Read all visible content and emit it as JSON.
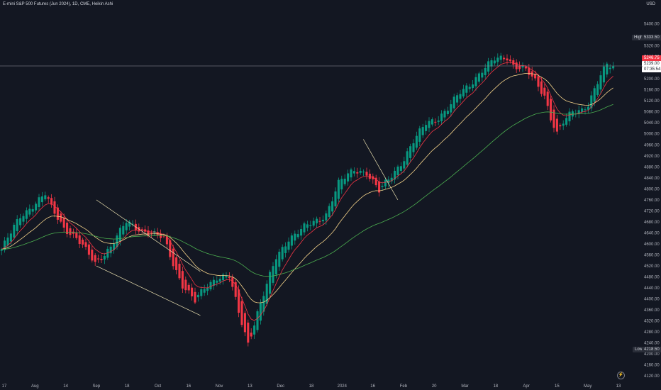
{
  "header": {
    "title": "E-mini S&P 500 Futures (Jun 2024), 1D, CME, Heikin Ashi",
    "currency": "USD"
  },
  "price_scale": {
    "high_label": "High",
    "high_value": "5333.50",
    "last_value": "5246.75",
    "close_value": "5239.00",
    "countdown": "07:35:54",
    "low_label": "Low",
    "low_value": "4218.50"
  },
  "logo": {
    "icon": "tradingview-icon",
    "glyph": "⚡"
  },
  "colors": {
    "up": "#089981",
    "down": "#f23645",
    "ema_fast": "#f23645",
    "ema_mid": "#f5d38a",
    "ema_slow": "#4caf50",
    "trendline": "#f0e6b4"
  },
  "chart_data": {
    "type": "candlestick",
    "title": "E-mini S&P 500 Futures (Jun 2024), 1D, CME, Heikin Ashi",
    "ylim": [
      4100,
      5440
    ],
    "y_ticks": [
      5400,
      5320,
      5280,
      5200,
      5160,
      5120,
      5080,
      5040,
      5000,
      4960,
      4920,
      4880,
      4840,
      4800,
      4760,
      4720,
      4680,
      4640,
      4600,
      4560,
      4520,
      4480,
      4440,
      4400,
      4360,
      4320,
      4280,
      4240,
      4200,
      4160,
      4120
    ],
    "x_ticks": [
      "17",
      "Aug",
      "14",
      "Sep",
      "18",
      "Oct",
      "16",
      "Nov",
      "13",
      "Dec",
      "18",
      "2024",
      "16",
      "Feb",
      "20",
      "Mar",
      "18",
      "Apr",
      "15",
      "May",
      "13"
    ],
    "last_price": 5246.75,
    "high": 5333.5,
    "low": 4218.5,
    "anchors": [
      [
        0,
        4580
      ],
      [
        6,
        4700
      ],
      [
        10,
        4740
      ],
      [
        14,
        4780
      ],
      [
        16,
        4730
      ],
      [
        20,
        4660
      ],
      [
        24,
        4620
      ],
      [
        30,
        4530
      ],
      [
        35,
        4590
      ],
      [
        40,
        4680
      ],
      [
        45,
        4650
      ],
      [
        52,
        4620
      ],
      [
        55,
        4530
      ],
      [
        58,
        4450
      ],
      [
        62,
        4390
      ],
      [
        65,
        4440
      ],
      [
        69,
        4480
      ],
      [
        73,
        4480
      ],
      [
        76,
        4350
      ],
      [
        79,
        4240
      ],
      [
        82,
        4350
      ],
      [
        88,
        4550
      ],
      [
        92,
        4620
      ],
      [
        97,
        4660
      ],
      [
        102,
        4690
      ],
      [
        104,
        4710
      ],
      [
        108,
        4820
      ],
      [
        113,
        4870
      ],
      [
        117,
        4860
      ],
      [
        121,
        4790
      ],
      [
        125,
        4850
      ],
      [
        129,
        4910
      ],
      [
        132,
        4970
      ],
      [
        136,
        5040
      ],
      [
        140,
        5060
      ],
      [
        143,
        5090
      ],
      [
        147,
        5150
      ],
      [
        150,
        5180
      ],
      [
        154,
        5230
      ],
      [
        158,
        5270
      ],
      [
        162,
        5280
      ],
      [
        164,
        5250
      ],
      [
        168,
        5230
      ],
      [
        171,
        5190
      ],
      [
        174,
        5140
      ],
      [
        176,
        5060
      ],
      [
        178,
        5000
      ],
      [
        180,
        5040
      ],
      [
        183,
        5080
      ],
      [
        186,
        5090
      ],
      [
        188,
        5110
      ],
      [
        190,
        5160
      ],
      [
        192,
        5210
      ],
      [
        194,
        5250
      ],
      [
        196,
        5245
      ]
    ],
    "ema_periods": [
      8,
      20,
      60
    ],
    "trendlines": [
      {
        "from": [
          "Sep",
          4760
        ],
        "to": [
          "Oct",
          4500
        ]
      },
      {
        "from": [
          "Sep",
          4520
        ],
        "to": [
          "Oct",
          4340
        ]
      },
      {
        "from": [
          "Jan",
          4980
        ],
        "to": [
          "Feb",
          4760
        ]
      }
    ]
  }
}
